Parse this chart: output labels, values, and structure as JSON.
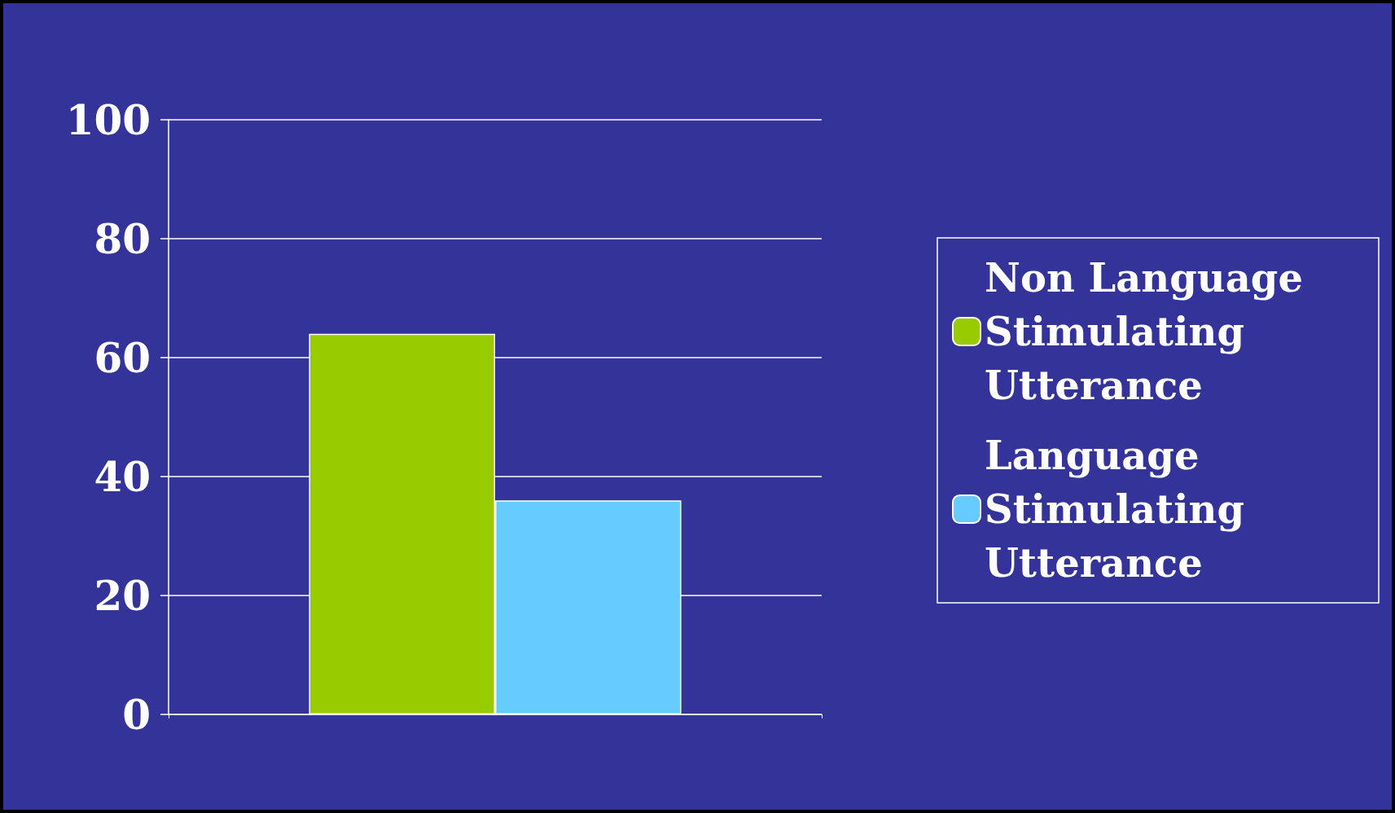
{
  "chart_data": {
    "type": "bar",
    "categories": [
      null
    ],
    "series": [
      {
        "name": "Non Language Stimulating Utterance",
        "color": "#99cc00",
        "values": [
          64
        ]
      },
      {
        "name": "Language Stimulating Utterance",
        "color": "#66ccff",
        "values": [
          36
        ]
      }
    ],
    "ylim": [
      0,
      100
    ],
    "yticks": [
      0,
      20,
      40,
      60,
      80,
      100
    ],
    "grid": "y",
    "legend": "right"
  }
}
